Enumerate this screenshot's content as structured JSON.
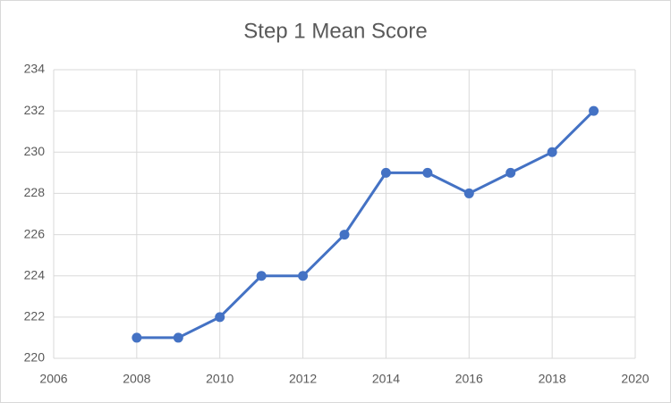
{
  "chart_data": {
    "type": "line",
    "title": "Step 1 Mean Score",
    "x": [
      2008,
      2009,
      2010,
      2011,
      2012,
      2013,
      2014,
      2015,
      2016,
      2017,
      2018,
      2019
    ],
    "values": [
      221,
      221,
      222,
      224,
      224,
      226,
      229,
      229,
      228,
      229,
      230,
      232
    ],
    "color": "#4472c4",
    "xlim": [
      2006,
      2020
    ],
    "xticks": [
      2006,
      2008,
      2010,
      2012,
      2014,
      2016,
      2018,
      2020
    ],
    "ylim": [
      220,
      234
    ],
    "yticks": [
      220,
      222,
      224,
      226,
      228,
      230,
      232,
      234
    ],
    "grid": true
  }
}
